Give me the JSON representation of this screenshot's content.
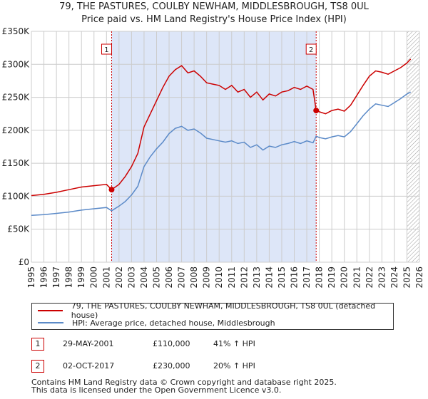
{
  "chart_data": {
    "type": "line",
    "title": "79, THE PASTURES, COULBY NEWHAM, MIDDLESBROUGH, TS8 0UL",
    "subtitle": "Price paid vs. HM Land Registry's House Price Index (HPI)",
    "xlim": [
      1995,
      2026
    ],
    "ylim": [
      0,
      350000
    ],
    "x_ticks": [
      "1995",
      "1996",
      "1997",
      "1998",
      "1999",
      "2000",
      "2001",
      "2002",
      "2003",
      "2004",
      "2005",
      "2006",
      "2007",
      "2008",
      "2009",
      "2010",
      "2011",
      "2012",
      "2013",
      "2014",
      "2015",
      "2016",
      "2017",
      "2018",
      "2019",
      "2020",
      "2021",
      "2022",
      "2023",
      "2024",
      "2025",
      "2026"
    ],
    "y_ticks": [
      {
        "value": 0,
        "label": "£0"
      },
      {
        "value": 50000,
        "label": "£50K"
      },
      {
        "value": 100000,
        "label": "£100K"
      },
      {
        "value": 150000,
        "label": "£150K"
      },
      {
        "value": 200000,
        "label": "£200K"
      },
      {
        "value": 250000,
        "label": "£250K"
      },
      {
        "value": 300000,
        "label": "£300K"
      },
      {
        "value": 350000,
        "label": "£350K"
      }
    ],
    "shaded_period": [
      2001.41,
      2017.75
    ],
    "hatched_from": 2025.0,
    "series": [
      {
        "name": "79, THE PASTURES, COULBY NEWHAM, MIDDLESBROUGH, TS8 0UL (detached house)",
        "color": "#cc0000",
        "points": [
          [
            1995.0,
            101000
          ],
          [
            1996.0,
            103000
          ],
          [
            1997.0,
            106000
          ],
          [
            1998.0,
            110000
          ],
          [
            1999.0,
            114000
          ],
          [
            2000.0,
            116000
          ],
          [
            2001.0,
            118000
          ],
          [
            2001.41,
            110000
          ],
          [
            2002.0,
            118000
          ],
          [
            2002.5,
            130000
          ],
          [
            2003.0,
            145000
          ],
          [
            2003.5,
            165000
          ],
          [
            2004.0,
            205000
          ],
          [
            2004.5,
            225000
          ],
          [
            2005.0,
            245000
          ],
          [
            2005.5,
            265000
          ],
          [
            2006.0,
            282000
          ],
          [
            2006.5,
            292000
          ],
          [
            2007.0,
            298000
          ],
          [
            2007.5,
            287000
          ],
          [
            2008.0,
            290000
          ],
          [
            2008.5,
            282000
          ],
          [
            2009.0,
            272000
          ],
          [
            2009.5,
            270000
          ],
          [
            2010.0,
            268000
          ],
          [
            2010.5,
            262000
          ],
          [
            2011.0,
            268000
          ],
          [
            2011.5,
            258000
          ],
          [
            2012.0,
            262000
          ],
          [
            2012.5,
            250000
          ],
          [
            2013.0,
            258000
          ],
          [
            2013.5,
            246000
          ],
          [
            2014.0,
            255000
          ],
          [
            2014.5,
            252000
          ],
          [
            2015.0,
            258000
          ],
          [
            2015.5,
            260000
          ],
          [
            2016.0,
            265000
          ],
          [
            2016.5,
            262000
          ],
          [
            2017.0,
            267000
          ],
          [
            2017.5,
            262000
          ],
          [
            2017.75,
            230000
          ],
          [
            2018.0,
            228000
          ],
          [
            2018.5,
            225000
          ],
          [
            2019.0,
            230000
          ],
          [
            2019.5,
            232000
          ],
          [
            2020.0,
            229000
          ],
          [
            2020.5,
            238000
          ],
          [
            2021.0,
            253000
          ],
          [
            2021.5,
            268000
          ],
          [
            2022.0,
            282000
          ],
          [
            2022.5,
            290000
          ],
          [
            2023.0,
            288000
          ],
          [
            2023.5,
            285000
          ],
          [
            2024.0,
            290000
          ],
          [
            2024.5,
            295000
          ],
          [
            2025.0,
            302000
          ],
          [
            2025.3,
            308000
          ]
        ]
      },
      {
        "name": "HPI: Average price, detached house, Middlesbrough",
        "color": "#5b8ac8",
        "points": [
          [
            1995.0,
            71000
          ],
          [
            1996.0,
            72000
          ],
          [
            1997.0,
            74000
          ],
          [
            1998.0,
            76000
          ],
          [
            1999.0,
            79000
          ],
          [
            2000.0,
            81000
          ],
          [
            2001.0,
            83000
          ],
          [
            2001.41,
            78000
          ],
          [
            2002.0,
            85000
          ],
          [
            2002.5,
            92000
          ],
          [
            2003.0,
            102000
          ],
          [
            2003.5,
            115000
          ],
          [
            2004.0,
            145000
          ],
          [
            2004.5,
            160000
          ],
          [
            2005.0,
            172000
          ],
          [
            2005.5,
            182000
          ],
          [
            2006.0,
            195000
          ],
          [
            2006.5,
            203000
          ],
          [
            2007.0,
            206000
          ],
          [
            2007.5,
            200000
          ],
          [
            2008.0,
            202000
          ],
          [
            2008.5,
            196000
          ],
          [
            2009.0,
            188000
          ],
          [
            2009.5,
            186000
          ],
          [
            2010.0,
            184000
          ],
          [
            2010.5,
            182000
          ],
          [
            2011.0,
            184000
          ],
          [
            2011.5,
            180000
          ],
          [
            2012.0,
            182000
          ],
          [
            2012.5,
            174000
          ],
          [
            2013.0,
            178000
          ],
          [
            2013.5,
            170000
          ],
          [
            2014.0,
            176000
          ],
          [
            2014.5,
            174000
          ],
          [
            2015.0,
            178000
          ],
          [
            2015.5,
            180000
          ],
          [
            2016.0,
            183000
          ],
          [
            2016.5,
            180000
          ],
          [
            2017.0,
            184000
          ],
          [
            2017.5,
            181000
          ],
          [
            2017.75,
            191000
          ],
          [
            2018.0,
            189000
          ],
          [
            2018.5,
            187000
          ],
          [
            2019.0,
            190000
          ],
          [
            2019.5,
            192000
          ],
          [
            2020.0,
            190000
          ],
          [
            2020.5,
            198000
          ],
          [
            2021.0,
            210000
          ],
          [
            2021.5,
            222000
          ],
          [
            2022.0,
            232000
          ],
          [
            2022.5,
            240000
          ],
          [
            2023.0,
            238000
          ],
          [
            2023.5,
            236000
          ],
          [
            2024.0,
            242000
          ],
          [
            2024.5,
            248000
          ],
          [
            2025.0,
            255000
          ],
          [
            2025.3,
            258000
          ]
        ]
      }
    ],
    "annotations": [
      {
        "label": "1",
        "x": 2001.41,
        "y": 110000
      },
      {
        "label": "2",
        "x": 2017.75,
        "y": 230000
      }
    ]
  },
  "sales": [
    {
      "num": "1",
      "date": "29-MAY-2001",
      "price": "£110,000",
      "hpi": "41% ↑ HPI"
    },
    {
      "num": "2",
      "date": "02-OCT-2017",
      "price": "£230,000",
      "hpi": "20% ↑ HPI"
    }
  ],
  "footer": {
    "line1": "Contains HM Land Registry data © Crown copyright and database right 2025.",
    "line2": "This data is licensed under the Open Government Licence v3.0."
  },
  "colors": {
    "property": "#cc0000",
    "hpi": "#5b8ac8",
    "shade": "#dde6f8",
    "grid": "#cccccc"
  }
}
